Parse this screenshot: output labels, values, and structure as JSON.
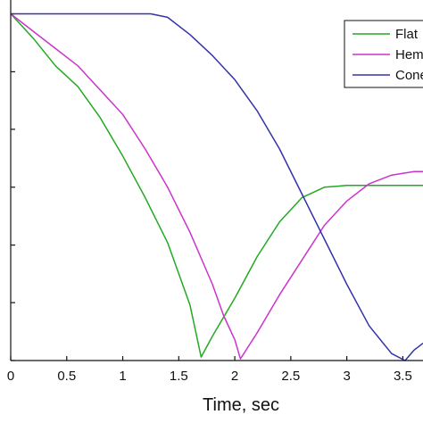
{
  "chart_data": {
    "type": "line",
    "xlabel": "Time, sec",
    "ylabel": "",
    "title": "",
    "xlim": [
      0,
      3.68
    ],
    "ylim": [
      0,
      1.04
    ],
    "x_ticks": [
      0,
      0.5,
      1,
      1.5,
      2,
      2.5,
      3,
      3.5
    ],
    "x_tick_labels": [
      "0",
      "0.5",
      "1",
      "1.5",
      "2",
      "2.5",
      "3",
      "3.5"
    ],
    "y_ticks": [
      0,
      0.167,
      0.333,
      0.5,
      0.667,
      0.833,
      1.0
    ],
    "grid": false,
    "legend": "top-right",
    "series": [
      {
        "name": "Flat",
        "color": "#22aa22",
        "points": [
          [
            0,
            1.0
          ],
          [
            0.2,
            0.93
          ],
          [
            0.4,
            0.85
          ],
          [
            0.6,
            0.79
          ],
          [
            0.8,
            0.7
          ],
          [
            1.0,
            0.59
          ],
          [
            1.2,
            0.47
          ],
          [
            1.4,
            0.34
          ],
          [
            1.6,
            0.16
          ],
          [
            1.7,
            0.01
          ],
          [
            1.8,
            0.07
          ],
          [
            2.0,
            0.18
          ],
          [
            2.2,
            0.3
          ],
          [
            2.4,
            0.4
          ],
          [
            2.6,
            0.47
          ],
          [
            2.8,
            0.5
          ],
          [
            3.0,
            0.505
          ],
          [
            3.68,
            0.505
          ]
        ]
      },
      {
        "name": "Hem",
        "color": "#cc33cc",
        "points": [
          [
            0,
            1.0
          ],
          [
            0.2,
            0.95
          ],
          [
            0.4,
            0.9
          ],
          [
            0.6,
            0.85
          ],
          [
            0.8,
            0.78
          ],
          [
            1.0,
            0.71
          ],
          [
            1.2,
            0.61
          ],
          [
            1.4,
            0.5
          ],
          [
            1.6,
            0.37
          ],
          [
            1.8,
            0.22
          ],
          [
            1.9,
            0.13
          ],
          [
            2.0,
            0.06
          ],
          [
            2.05,
            0.005
          ],
          [
            2.2,
            0.08
          ],
          [
            2.4,
            0.19
          ],
          [
            2.6,
            0.29
          ],
          [
            2.8,
            0.39
          ],
          [
            3.0,
            0.46
          ],
          [
            3.2,
            0.51
          ],
          [
            3.4,
            0.535
          ],
          [
            3.6,
            0.545
          ],
          [
            3.68,
            0.545
          ]
        ]
      },
      {
        "name": "Cone",
        "color": "#3333aa",
        "points": [
          [
            0,
            1.0
          ],
          [
            1.25,
            1.0
          ],
          [
            1.4,
            0.99
          ],
          [
            1.6,
            0.94
          ],
          [
            1.8,
            0.88
          ],
          [
            2.0,
            0.81
          ],
          [
            2.2,
            0.72
          ],
          [
            2.4,
            0.61
          ],
          [
            2.6,
            0.48
          ],
          [
            2.8,
            0.35
          ],
          [
            3.0,
            0.22
          ],
          [
            3.2,
            0.1
          ],
          [
            3.4,
            0.02
          ],
          [
            3.52,
            0.0
          ],
          [
            3.6,
            0.03
          ],
          [
            3.68,
            0.05
          ]
        ]
      }
    ]
  }
}
